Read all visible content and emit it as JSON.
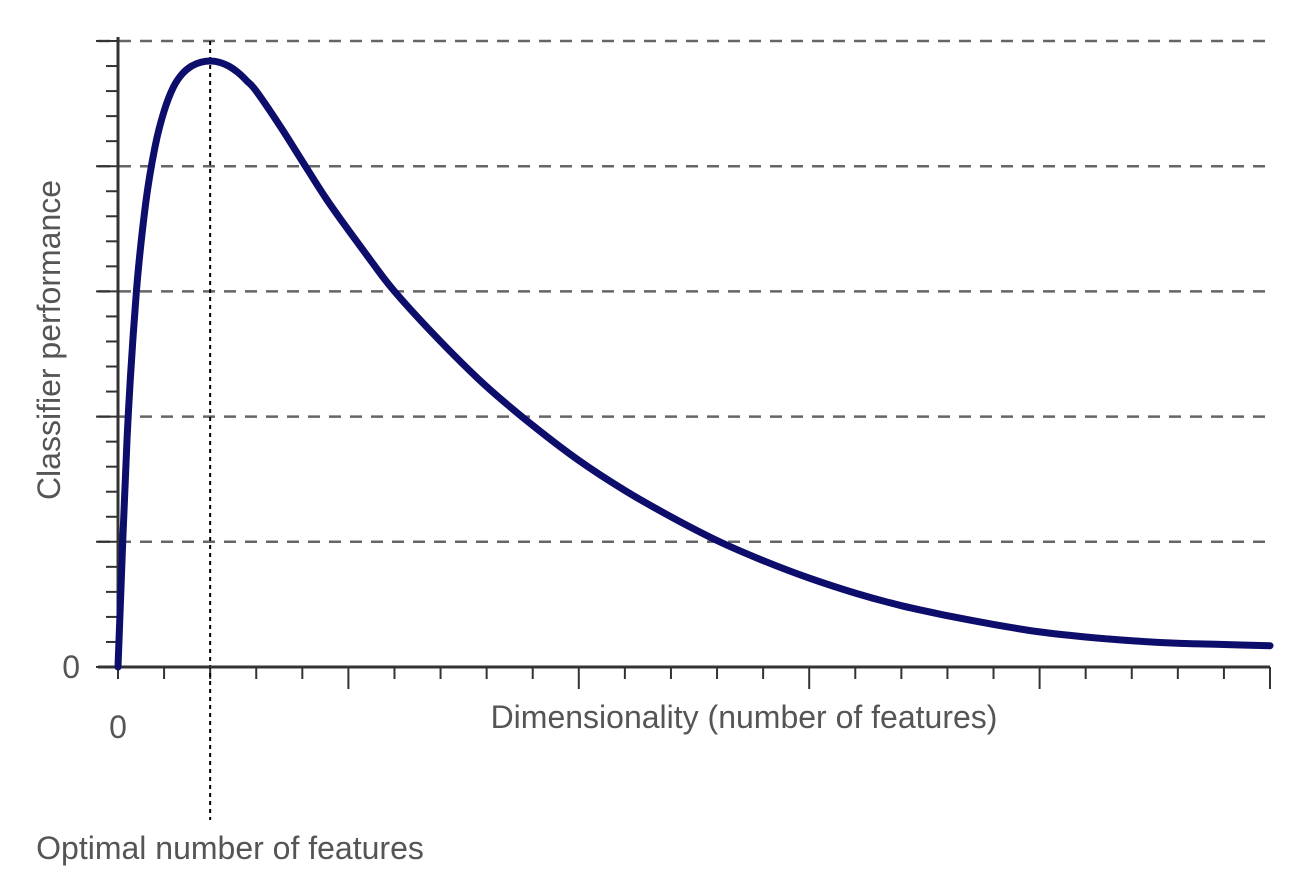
{
  "chart_data": {
    "type": "line",
    "title": "",
    "xlabel": "Dimensionality (number of features)",
    "ylabel": "Classifier performance",
    "x_tick_labels": [
      "0"
    ],
    "y_tick_labels": [
      "0"
    ],
    "annotation": "Optimal number of features",
    "grid": true,
    "legend": "none",
    "xlim": [
      0,
      25
    ],
    "ylim": [
      0,
      5
    ],
    "optimal_x": 2,
    "colors": {
      "curve": "#0d0d6b",
      "axis": "#333333",
      "grid": "#666666",
      "text": "#555555"
    },
    "series": [
      {
        "x": [
          0,
          0.2,
          0.4,
          0.6,
          0.8,
          1.0,
          1.2,
          1.4,
          1.6,
          1.8,
          2.0,
          2.2,
          2.4,
          2.6,
          2.8,
          3.0,
          3.5,
          4.0,
          4.5,
          5.0,
          5.5,
          6.0,
          7.0,
          8.0,
          9.0,
          10.0,
          11.0,
          12.0,
          13.0,
          14.0,
          15.0,
          16.0,
          17.0,
          18.0,
          19.0,
          20.0,
          21.0,
          22.0,
          23.0,
          24.0,
          25.0
        ],
        "values": [
          0,
          1.85,
          3.0,
          3.7,
          4.15,
          4.44,
          4.63,
          4.74,
          4.8,
          4.83,
          4.84,
          4.83,
          4.8,
          4.75,
          4.68,
          4.6,
          4.33,
          4.04,
          3.75,
          3.49,
          3.24,
          3.0,
          2.6,
          2.24,
          1.93,
          1.65,
          1.41,
          1.2,
          1.01,
          0.85,
          0.71,
          0.59,
          0.49,
          0.41,
          0.34,
          0.28,
          0.24,
          0.21,
          0.19,
          0.18,
          0.17
        ]
      }
    ]
  }
}
